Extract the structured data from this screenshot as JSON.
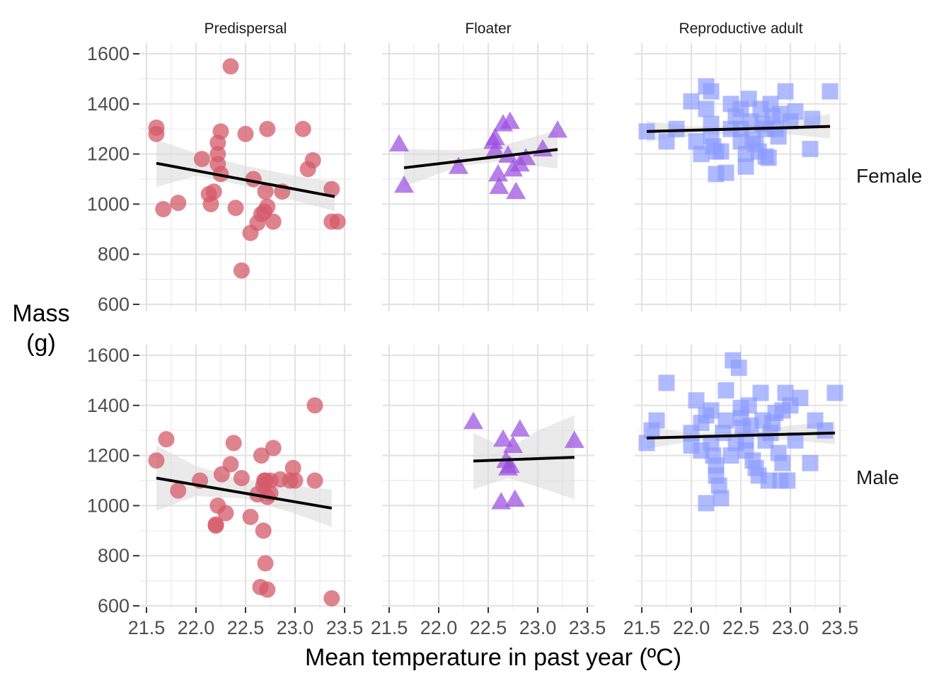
{
  "chart_data": {
    "type": "scatter",
    "facets": {
      "columns": [
        "Predispersal",
        "Floater",
        "Reproductive adult"
      ],
      "rows": [
        "Female",
        "Male"
      ]
    },
    "xlabel": "Mean temperature in past year (ºC)",
    "ylabel": [
      "Mass",
      "(g)"
    ],
    "xlim": [
      21.5,
      23.5
    ],
    "ylim": [
      600,
      1600
    ],
    "xticks": [
      "21.5",
      "22.0",
      "22.5",
      "23.0",
      "23.5"
    ],
    "yticks": [
      "600",
      "800",
      "1000",
      "1200",
      "1400",
      "1600"
    ],
    "grid": true,
    "legend": "none",
    "colors": {
      "Predispersal": "#D45A6A",
      "Floater": "#9B4FE0",
      "Reproductive adult": "#8A9BFF",
      "trend": "#000000",
      "ribbon": "#D9D9D9"
    },
    "markers": {
      "Predispersal": "circle",
      "Floater": "triangle",
      "Reproductive adult": "square"
    },
    "panels": [
      {
        "group": "Predispersal",
        "sex": "Female",
        "points": [
          [
            21.6,
            1305
          ],
          [
            21.6,
            1280
          ],
          [
            21.67,
            980
          ],
          [
            21.82,
            1005
          ],
          [
            22.06,
            1180
          ],
          [
            22.13,
            1040
          ],
          [
            22.15,
            1000
          ],
          [
            22.18,
            1050
          ],
          [
            22.22,
            1245
          ],
          [
            22.22,
            1200
          ],
          [
            22.22,
            1160
          ],
          [
            22.25,
            1290
          ],
          [
            22.25,
            1120
          ],
          [
            22.35,
            1550
          ],
          [
            22.4,
            985
          ],
          [
            22.46,
            735
          ],
          [
            22.5,
            1280
          ],
          [
            22.55,
            885
          ],
          [
            22.58,
            1100
          ],
          [
            22.62,
            925
          ],
          [
            22.66,
            960
          ],
          [
            22.69,
            970
          ],
          [
            22.7,
            1050
          ],
          [
            22.72,
            1300
          ],
          [
            22.72,
            990
          ],
          [
            22.78,
            930
          ],
          [
            22.87,
            1050
          ],
          [
            23.08,
            1300
          ],
          [
            23.13,
            1140
          ],
          [
            23.18,
            1175
          ],
          [
            23.37,
            1060
          ],
          [
            23.37,
            930
          ],
          [
            23.43,
            930
          ]
        ],
        "trend": {
          "x": [
            21.6,
            23.4
          ],
          "y": [
            1163,
            1030
          ]
        },
        "band": {
          "x": [
            21.6,
            22.0,
            22.5,
            23.0,
            23.4
          ],
          "lower": [
            1068,
            1113,
            1073,
            1013,
            973
          ],
          "upper": [
            1258,
            1203,
            1153,
            1113,
            1087
          ]
        }
      },
      {
        "group": "Floater",
        "sex": "Female",
        "points": [
          [
            21.6,
            1240
          ],
          [
            21.65,
            1075
          ],
          [
            22.2,
            1150
          ],
          [
            22.55,
            1250
          ],
          [
            22.57,
            1265
          ],
          [
            22.57,
            1215
          ],
          [
            22.6,
            1120
          ],
          [
            22.61,
            1070
          ],
          [
            22.65,
            1320
          ],
          [
            22.7,
            1195
          ],
          [
            22.72,
            1330
          ],
          [
            22.75,
            1140
          ],
          [
            22.78,
            1050
          ],
          [
            22.82,
            1160
          ],
          [
            22.88,
            1185
          ],
          [
            23.05,
            1220
          ],
          [
            23.2,
            1295
          ]
        ],
        "trend": {
          "x": [
            21.65,
            23.2
          ],
          "y": [
            1145,
            1218
          ]
        },
        "band": {
          "x": [
            21.65,
            22.2,
            22.6,
            23.2
          ],
          "lower": [
            1070,
            1150,
            1170,
            1142
          ],
          "upper": [
            1220,
            1215,
            1230,
            1294
          ]
        }
      },
      {
        "group": "Reproductive adult",
        "sex": "Female",
        "points": [
          [
            21.55,
            1290
          ],
          [
            21.75,
            1250
          ],
          [
            21.85,
            1300
          ],
          [
            22.0,
            1410
          ],
          [
            22.05,
            1250
          ],
          [
            22.1,
            1200
          ],
          [
            22.15,
            1470
          ],
          [
            22.15,
            1380
          ],
          [
            22.2,
            1450
          ],
          [
            22.2,
            1320
          ],
          [
            22.2,
            1270
          ],
          [
            22.22,
            1230
          ],
          [
            22.25,
            1120
          ],
          [
            22.25,
            1210
          ],
          [
            22.3,
            1210
          ],
          [
            22.35,
            1125
          ],
          [
            22.4,
            1400
          ],
          [
            22.4,
            1300
          ],
          [
            22.45,
            1350
          ],
          [
            22.5,
            1380
          ],
          [
            22.5,
            1300
          ],
          [
            22.5,
            1250
          ],
          [
            22.55,
            1200
          ],
          [
            22.55,
            1150
          ],
          [
            22.58,
            1420
          ],
          [
            22.6,
            1330
          ],
          [
            22.62,
            1260
          ],
          [
            22.65,
            1240
          ],
          [
            22.68,
            1210
          ],
          [
            22.7,
            1380
          ],
          [
            22.72,
            1320
          ],
          [
            22.75,
            1300
          ],
          [
            22.75,
            1190
          ],
          [
            22.78,
            1185
          ],
          [
            22.8,
            1400
          ],
          [
            22.82,
            1350
          ],
          [
            22.85,
            1300
          ],
          [
            22.88,
            1270
          ],
          [
            22.9,
            1360
          ],
          [
            23.0,
            1330
          ],
          [
            23.05,
            1370
          ],
          [
            23.2,
            1220
          ],
          [
            23.22,
            1340
          ],
          [
            23.4,
            1450
          ],
          [
            22.95,
            1450
          ]
        ],
        "trend": {
          "x": [
            21.55,
            23.4
          ],
          "y": [
            1290,
            1310
          ]
        },
        "band": {
          "x": [
            21.55,
            22.0,
            22.5,
            23.0,
            23.4
          ],
          "lower": [
            1248,
            1272,
            1283,
            1278,
            1261
          ],
          "upper": [
            1332,
            1310,
            1315,
            1336,
            1359
          ]
        }
      },
      {
        "group": "Predispersal",
        "sex": "Male",
        "points": [
          [
            21.6,
            1180
          ],
          [
            21.7,
            1265
          ],
          [
            21.82,
            1060
          ],
          [
            22.04,
            1100
          ],
          [
            22.2,
            925
          ],
          [
            22.2,
            920
          ],
          [
            22.22,
            1000
          ],
          [
            22.26,
            1125
          ],
          [
            22.3,
            970
          ],
          [
            22.35,
            1165
          ],
          [
            22.38,
            1250
          ],
          [
            22.46,
            1110
          ],
          [
            22.55,
            955
          ],
          [
            22.62,
            1045
          ],
          [
            22.65,
            675
          ],
          [
            22.66,
            1200
          ],
          [
            22.68,
            900
          ],
          [
            22.68,
            1080
          ],
          [
            22.69,
            1100
          ],
          [
            22.7,
            770
          ],
          [
            22.7,
            1100
          ],
          [
            22.72,
            665
          ],
          [
            22.72,
            1035
          ],
          [
            22.75,
            1100
          ],
          [
            22.75,
            1050
          ],
          [
            22.78,
            1230
          ],
          [
            22.85,
            1105
          ],
          [
            22.95,
            1100
          ],
          [
            22.98,
            1150
          ],
          [
            23.0,
            1100
          ],
          [
            23.2,
            1400
          ],
          [
            23.2,
            1100
          ],
          [
            23.37,
            630
          ]
        ],
        "trend": {
          "x": [
            21.6,
            23.37
          ],
          "y": [
            1110,
            990
          ]
        },
        "band": {
          "x": [
            21.6,
            22.0,
            22.5,
            23.0,
            23.37
          ],
          "lower": [
            980,
            1038,
            1028,
            968,
            915
          ],
          "upper": [
            1240,
            1158,
            1100,
            1078,
            1065
          ]
        }
      },
      {
        "group": "Floater",
        "sex": "Male",
        "points": [
          [
            22.35,
            1335
          ],
          [
            22.63,
            1015
          ],
          [
            22.65,
            1265
          ],
          [
            22.68,
            1180
          ],
          [
            22.7,
            1150
          ],
          [
            22.72,
            1160
          ],
          [
            22.75,
            1240
          ],
          [
            22.77,
            1025
          ],
          [
            22.82,
            1305
          ],
          [
            23.37,
            1260
          ]
        ],
        "trend": {
          "x": [
            22.35,
            23.37
          ],
          "y": [
            1178,
            1193
          ]
        },
        "band": {
          "x": [
            22.35,
            22.7,
            23.0,
            23.37
          ],
          "lower": [
            1065,
            1110,
            1075,
            1025
          ],
          "upper": [
            1290,
            1225,
            1300,
            1361
          ]
        }
      },
      {
        "group": "Reproductive adult",
        "sex": "Male",
        "points": [
          [
            21.55,
            1250
          ],
          [
            21.6,
            1300
          ],
          [
            21.65,
            1340
          ],
          [
            21.75,
            1490
          ],
          [
            22.0,
            1290
          ],
          [
            22.0,
            1240
          ],
          [
            22.05,
            1420
          ],
          [
            22.1,
            1330
          ],
          [
            22.1,
            1220
          ],
          [
            22.15,
            1010
          ],
          [
            22.15,
            1360
          ],
          [
            22.2,
            1380
          ],
          [
            22.2,
            1250
          ],
          [
            22.22,
            1200
          ],
          [
            22.25,
            1160
          ],
          [
            22.25,
            1120
          ],
          [
            22.28,
            1080
          ],
          [
            22.3,
            1030
          ],
          [
            22.32,
            1290
          ],
          [
            22.35,
            1460
          ],
          [
            22.35,
            1340
          ],
          [
            22.4,
            1200
          ],
          [
            22.42,
            1580
          ],
          [
            22.45,
            1250
          ],
          [
            22.48,
            1550
          ],
          [
            22.5,
            1350
          ],
          [
            22.5,
            1390
          ],
          [
            22.52,
            1310
          ],
          [
            22.55,
            1260
          ],
          [
            22.55,
            1220
          ],
          [
            22.58,
            1400
          ],
          [
            22.6,
            1320
          ],
          [
            22.62,
            1180
          ],
          [
            22.65,
            1150
          ],
          [
            22.68,
            1120
          ],
          [
            22.7,
            1450
          ],
          [
            22.72,
            1340
          ],
          [
            22.75,
            1260
          ],
          [
            22.78,
            1100
          ],
          [
            22.8,
            1290
          ],
          [
            22.82,
            1330
          ],
          [
            22.85,
            1370
          ],
          [
            22.88,
            1210
          ],
          [
            22.9,
            1100
          ],
          [
            22.92,
            1380
          ],
          [
            22.95,
            1450
          ],
          [
            23.0,
            1400
          ],
          [
            23.05,
            1260
          ],
          [
            23.1,
            1430
          ],
          [
            23.2,
            1170
          ],
          [
            23.25,
            1340
          ],
          [
            23.35,
            1300
          ],
          [
            23.45,
            1450
          ],
          [
            22.97,
            1100
          ],
          [
            22.92,
            1170
          ]
        ],
        "trend": {
          "x": [
            21.55,
            23.45
          ],
          "y": [
            1270,
            1290
          ]
        },
        "band": {
          "x": [
            21.55,
            22.0,
            22.5,
            23.0,
            23.45
          ],
          "lower": [
            1228,
            1256,
            1268,
            1262,
            1245
          ],
          "upper": [
            1312,
            1290,
            1297,
            1320,
            1335
          ]
        }
      }
    ]
  }
}
